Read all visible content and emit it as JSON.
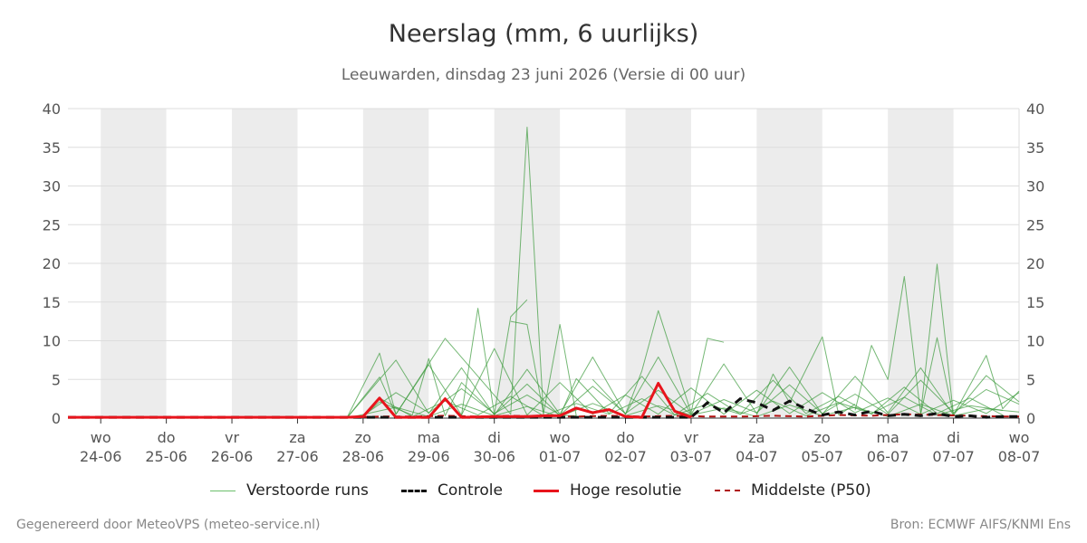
{
  "chart_data": {
    "type": "line",
    "title": "Neerslag (mm, 6 uurlijks)",
    "subtitle": "Leeuwarden, dinsdag 23 juni 2026 (Versie di 00 uur)",
    "xlabel": "",
    "ylabel": "",
    "ylim": [
      0,
      40
    ],
    "yticks": [
      "0",
      "5",
      "10",
      "15",
      "20",
      "25",
      "30",
      "35",
      "40"
    ],
    "grid": true,
    "legend_position": "bottom",
    "x_range": [
      "2026-06-23T12:00",
      "2026-07-08T00:00"
    ],
    "x_ticks": [
      {
        "date": "2026-06-24",
        "weekday": "wo",
        "label": "24-06"
      },
      {
        "date": "2026-06-25",
        "weekday": "do",
        "label": "25-06"
      },
      {
        "date": "2026-06-26",
        "weekday": "vr",
        "label": "26-06"
      },
      {
        "date": "2026-06-27",
        "weekday": "za",
        "label": "27-06"
      },
      {
        "date": "2026-06-28",
        "weekday": "zo",
        "label": "28-06"
      },
      {
        "date": "2026-06-29",
        "weekday": "ma",
        "label": "29-06"
      },
      {
        "date": "2026-06-30",
        "weekday": "di",
        "label": "30-06"
      },
      {
        "date": "2026-07-01",
        "weekday": "wo",
        "label": "01-07"
      },
      {
        "date": "2026-07-02",
        "weekday": "do",
        "label": "02-07"
      },
      {
        "date": "2026-07-03",
        "weekday": "vr",
        "label": "03-07"
      },
      {
        "date": "2026-07-04",
        "weekday": "za",
        "label": "04-07"
      },
      {
        "date": "2026-07-05",
        "weekday": "zo",
        "label": "05-07"
      },
      {
        "date": "2026-07-06",
        "weekday": "ma",
        "label": "06-07"
      },
      {
        "date": "2026-07-07",
        "weekday": "di",
        "label": "07-07"
      },
      {
        "date": "2026-07-08",
        "weekday": "wo",
        "label": "08-07"
      }
    ],
    "shaded_days": [
      "2026-06-24",
      "2026-06-26",
      "2026-06-28",
      "2026-06-30",
      "2026-07-02",
      "2026-07-04",
      "2026-07-06"
    ],
    "series": [
      {
        "name": "Verstoorde runs",
        "style": "thin",
        "color": "#3a9a3a",
        "members": [
          {
            "x": [
              "2026-06-27T18:00",
              "2026-06-28T06:00",
              "2026-06-28T12:00",
              "2026-06-29T06:00",
              "2026-06-30T06:00",
              "2026-06-30T12:00",
              "2026-06-30T18:00",
              "2026-07-01T06:00"
            ],
            "y": [
              0,
              8.4,
              0.5,
              10.3,
              0.5,
              37.6,
              0.4,
              0.3
            ]
          },
          {
            "x": [
              "2026-06-29T12:00",
              "2026-06-29T18:00",
              "2026-06-30T00:00",
              "2026-06-30T06:00",
              "2026-06-30T12:00"
            ],
            "y": [
              0.4,
              14.2,
              0.5,
              13.1,
              15.3
            ]
          },
          {
            "x": [
              "2026-06-30T06:00",
              "2026-06-30T12:00",
              "2026-06-30T18:00",
              "2026-07-01T00:00",
              "2026-07-01T06:00"
            ],
            "y": [
              12.5,
              12.1,
              0.6,
              12.1,
              0.3
            ]
          },
          {
            "x": [
              "2026-07-01T12:00",
              "2026-07-02T00:00",
              "2026-07-02T06:00",
              "2026-07-02T12:00",
              "2026-07-03T00:00",
              "2026-07-03T06:00",
              "2026-07-03T12:00"
            ],
            "y": [
              5.0,
              0.5,
              6.1,
              13.9,
              0.7,
              10.3,
              9.8
            ]
          },
          {
            "x": [
              "2026-07-04T00:00",
              "2026-07-04T06:00",
              "2026-07-04T12:00",
              "2026-07-05T00:00",
              "2026-07-05T06:00",
              "2026-07-05T12:00"
            ],
            "y": [
              0.4,
              5.7,
              2.0,
              10.5,
              0.4,
              1.8
            ]
          },
          {
            "x": [
              "2026-07-05T12:00",
              "2026-07-05T18:00",
              "2026-07-06T00:00",
              "2026-07-06T06:00",
              "2026-07-06T12:00",
              "2026-07-06T18:00",
              "2026-07-07T00:00"
            ],
            "y": [
              1.0,
              9.4,
              5.0,
              18.3,
              0.5,
              10.4,
              0.3
            ]
          },
          {
            "x": [
              "2026-07-06T12:00",
              "2026-07-06T18:00",
              "2026-07-07T00:00",
              "2026-07-07T12:00",
              "2026-07-07T18:00",
              "2026-07-08T00:00"
            ],
            "y": [
              0.6,
              19.9,
              0.4,
              8.1,
              1.2,
              3.5
            ]
          },
          {
            "x": [
              "2026-06-27T18:00",
              "2026-06-28T12:00",
              "2026-06-29T00:00",
              "2026-06-29T12:00",
              "2026-06-30T00:00",
              "2026-06-30T12:00",
              "2026-07-01T00:00",
              "2026-07-01T12:00",
              "2026-07-02T00:00",
              "2026-07-02T12:00",
              "2026-07-03T00:00",
              "2026-07-03T12:00",
              "2026-07-04T00:00",
              "2026-07-04T12:00",
              "2026-07-05T00:00",
              "2026-07-05T12:00",
              "2026-07-06T00:00",
              "2026-07-06T12:00",
              "2026-07-07T00:00",
              "2026-07-07T12:00",
              "2026-07-08T00:00"
            ],
            "y": [
              0,
              7.5,
              0.6,
              6.5,
              0.4,
              6.3,
              0.5,
              7.9,
              0.5,
              7.9,
              0.5,
              7.0,
              0.6,
              6.6,
              0.5,
              5.4,
              0.7,
              6.5,
              0.4,
              5.5,
              2.1
            ]
          },
          {
            "x": [
              "2026-06-28T00:00",
              "2026-06-28T06:00",
              "2026-06-28T18:00",
              "2026-06-29T00:00",
              "2026-06-29T06:00",
              "2026-06-29T12:00",
              "2026-06-30T00:00",
              "2026-06-30T12:00",
              "2026-07-01T00:00",
              "2026-07-01T06:00",
              "2026-07-01T18:00",
              "2026-07-02T06:00",
              "2026-07-02T18:00",
              "2026-07-03T06:00",
              "2026-07-03T18:00",
              "2026-07-04T06:00",
              "2026-07-04T18:00",
              "2026-07-05T06:00",
              "2026-07-05T18:00",
              "2026-07-06T06:00",
              "2026-07-06T18:00",
              "2026-07-07T06:00",
              "2026-07-07T18:00"
            ],
            "y": [
              0.2,
              2.1,
              0.4,
              7.7,
              0.3,
              4.6,
              0.5,
              4.4,
              0.3,
              5.1,
              0.6,
              5.4,
              0.4,
              3.2,
              0.5,
              4.9,
              0.6,
              2.8,
              0.5,
              4.0,
              0.6,
              2.6,
              0.4
            ]
          },
          {
            "x": [
              "2026-06-27T18:00",
              "2026-06-28T06:00",
              "2026-06-28T12:00",
              "2026-06-29T00:00",
              "2026-06-29T12:00",
              "2026-06-30T00:00",
              "2026-06-30T12:00",
              "2026-07-01T00:00",
              "2026-07-01T12:00",
              "2026-07-02T00:00",
              "2026-07-02T12:00",
              "2026-07-03T00:00",
              "2026-07-03T12:00",
              "2026-07-04T00:00",
              "2026-07-04T12:00",
              "2026-07-05T00:00",
              "2026-07-05T12:00",
              "2026-07-06T00:00",
              "2026-07-06T12:00",
              "2026-07-07T00:00",
              "2026-07-07T12:00",
              "2026-07-08T00:00"
            ],
            "y": [
              0,
              5.3,
              0.5,
              6.9,
              0.4,
              9.0,
              0.4,
              4.6,
              0.5,
              3.0,
              0.5,
              3.9,
              0.5,
              3.6,
              0.6,
              3.3,
              0.7,
              2.6,
              0.5,
              2.3,
              0.6,
              3.3
            ]
          },
          {
            "x": [
              "2026-06-28T00:00",
              "2026-06-28T12:00",
              "2026-06-29T00:00",
              "2026-06-29T12:00",
              "2026-06-30T00:00",
              "2026-06-30T12:00",
              "2026-07-01T00:00",
              "2026-07-01T12:00",
              "2026-07-02T00:00",
              "2026-07-02T12:00",
              "2026-07-03T00:00",
              "2026-07-03T12:00",
              "2026-07-04T00:00",
              "2026-07-04T12:00",
              "2026-07-05T00:00",
              "2026-07-05T12:00",
              "2026-07-06T00:00",
              "2026-07-06T12:00",
              "2026-07-07T00:00",
              "2026-07-07T12:00",
              "2026-07-08T00:00"
            ],
            "y": [
              0.3,
              3.3,
              0.7,
              3.8,
              0.6,
              3.0,
              0.4,
              4.1,
              0.6,
              3.6,
              0.5,
              2.4,
              0.7,
              4.3,
              0.6,
              3.1,
              0.5,
              4.9,
              0.7,
              3.7,
              1.8
            ]
          },
          {
            "x": [
              "2026-06-28T06:00",
              "2026-06-28T18:00",
              "2026-06-29T06:00",
              "2026-06-29T18:00",
              "2026-06-30T06:00",
              "2026-06-30T18:00",
              "2026-07-01T06:00",
              "2026-07-01T18:00",
              "2026-07-02T06:00",
              "2026-07-02T18:00",
              "2026-07-03T06:00",
              "2026-07-03T18:00",
              "2026-07-04T06:00",
              "2026-07-04T18:00",
              "2026-07-05T06:00",
              "2026-07-05T18:00",
              "2026-07-06T06:00",
              "2026-07-06T18:00",
              "2026-07-07T06:00",
              "2026-07-07T18:00"
            ],
            "y": [
              2.6,
              0.2,
              2.2,
              0.4,
              2.8,
              0.3,
              1.9,
              0.5,
              2.5,
              0.4,
              1.8,
              0.5,
              2.2,
              0.3,
              2.0,
              0.6,
              2.7,
              0.4,
              1.6,
              1.0
            ]
          },
          {
            "x": [
              "2026-06-27T18:00",
              "2026-06-28T12:00",
              "2026-06-29T00:00",
              "2026-06-29T12:00",
              "2026-06-30T00:00",
              "2026-06-30T12:00",
              "2026-07-01T00:00",
              "2026-07-01T12:00",
              "2026-07-02T00:00",
              "2026-07-02T12:00",
              "2026-07-03T00:00",
              "2026-07-03T12:00",
              "2026-07-04T00:00",
              "2026-07-04T12:00",
              "2026-07-05T00:00",
              "2026-07-05T12:00",
              "2026-07-06T00:00",
              "2026-07-06T12:00",
              "2026-07-07T00:00",
              "2026-07-07T12:00",
              "2026-07-08T00:00"
            ],
            "y": [
              0,
              1.4,
              0.2,
              1.8,
              0.3,
              1.5,
              0.2,
              1.9,
              0.3,
              1.6,
              0.4,
              1.3,
              0.2,
              1.7,
              0.3,
              1.4,
              0.2,
              1.8,
              0.3,
              1.2,
              0.8
            ]
          }
        ]
      },
      {
        "name": "Controle",
        "style": "dashed",
        "color": "#111111",
        "x": [
          "2026-06-23T12:00",
          "2026-07-03T00:00",
          "2026-07-03T06:00",
          "2026-07-03T12:00",
          "2026-07-03T18:00",
          "2026-07-04T00:00",
          "2026-07-04T06:00",
          "2026-07-04T12:00",
          "2026-07-04T18:00",
          "2026-07-05T00:00",
          "2026-07-05T06:00",
          "2026-07-05T12:00",
          "2026-07-05T18:00",
          "2026-07-06T00:00",
          "2026-07-06T06:00",
          "2026-07-06T12:00",
          "2026-07-06T18:00",
          "2026-07-07T00:00",
          "2026-07-07T06:00",
          "2026-07-07T12:00",
          "2026-07-07T18:00",
          "2026-07-08T00:00"
        ],
        "y": [
          0.1,
          0.1,
          2.0,
          0.7,
          2.5,
          2.0,
          1.0,
          2.2,
          1.2,
          0.4,
          0.8,
          0.4,
          0.9,
          0.3,
          0.5,
          0.3,
          0.6,
          0.2,
          0.3,
          0.1,
          0.2,
          0.2
        ]
      },
      {
        "name": "Hoge resolutie",
        "style": "solid-thick",
        "color": "#e8141c",
        "x": [
          "2026-06-23T12:00",
          "2026-06-27T18:00",
          "2026-06-28T00:00",
          "2026-06-28T06:00",
          "2026-06-28T12:00",
          "2026-06-28T18:00",
          "2026-06-29T00:00",
          "2026-06-29T06:00",
          "2026-06-29T12:00",
          "2026-06-30T00:00",
          "2026-06-30T12:00",
          "2026-06-30T18:00",
          "2026-07-01T00:00",
          "2026-07-01T06:00",
          "2026-07-01T12:00",
          "2026-07-01T18:00",
          "2026-07-02T00:00",
          "2026-07-02T06:00",
          "2026-07-02T12:00",
          "2026-07-02T18:00",
          "2026-07-03T00:00"
        ],
        "y": [
          0.1,
          0.1,
          0.2,
          2.6,
          0.1,
          0.1,
          0.1,
          2.5,
          0.1,
          0.2,
          0.2,
          0.3,
          0.3,
          1.3,
          0.7,
          1.1,
          0.2,
          0.1,
          4.5,
          0.9,
          0.1
        ]
      },
      {
        "name": "Middelste (P50)",
        "style": "dashed",
        "color": "#b01010",
        "x": [
          "2026-06-23T12:00",
          "2026-06-27T18:00",
          "2026-06-28T06:00",
          "2026-06-28T18:00",
          "2026-06-29T06:00",
          "2026-06-29T18:00",
          "2026-06-30T06:00",
          "2026-06-30T18:00",
          "2026-07-01T06:00",
          "2026-07-01T18:00",
          "2026-07-02T06:00",
          "2026-07-02T18:00",
          "2026-07-03T06:00",
          "2026-07-03T18:00",
          "2026-07-04T06:00",
          "2026-07-04T18:00",
          "2026-07-05T06:00",
          "2026-07-05T18:00",
          "2026-07-06T06:00",
          "2026-07-06T18:00",
          "2026-07-07T06:00",
          "2026-07-07T18:00",
          "2026-07-08T00:00"
        ],
        "y": [
          0.1,
          0.1,
          0.2,
          0.2,
          0.3,
          0.2,
          0.3,
          0.2,
          0.2,
          0.3,
          0.2,
          0.3,
          0.2,
          0.2,
          0.3,
          0.2,
          0.4,
          0.3,
          0.5,
          0.4,
          0.3,
          0.2,
          0.2
        ]
      }
    ]
  },
  "footer": {
    "left": "Gegenereerd door MeteoVPS (meteo-service.nl)",
    "right": "Bron: ECMWF AIFS/KNMI Ens"
  }
}
